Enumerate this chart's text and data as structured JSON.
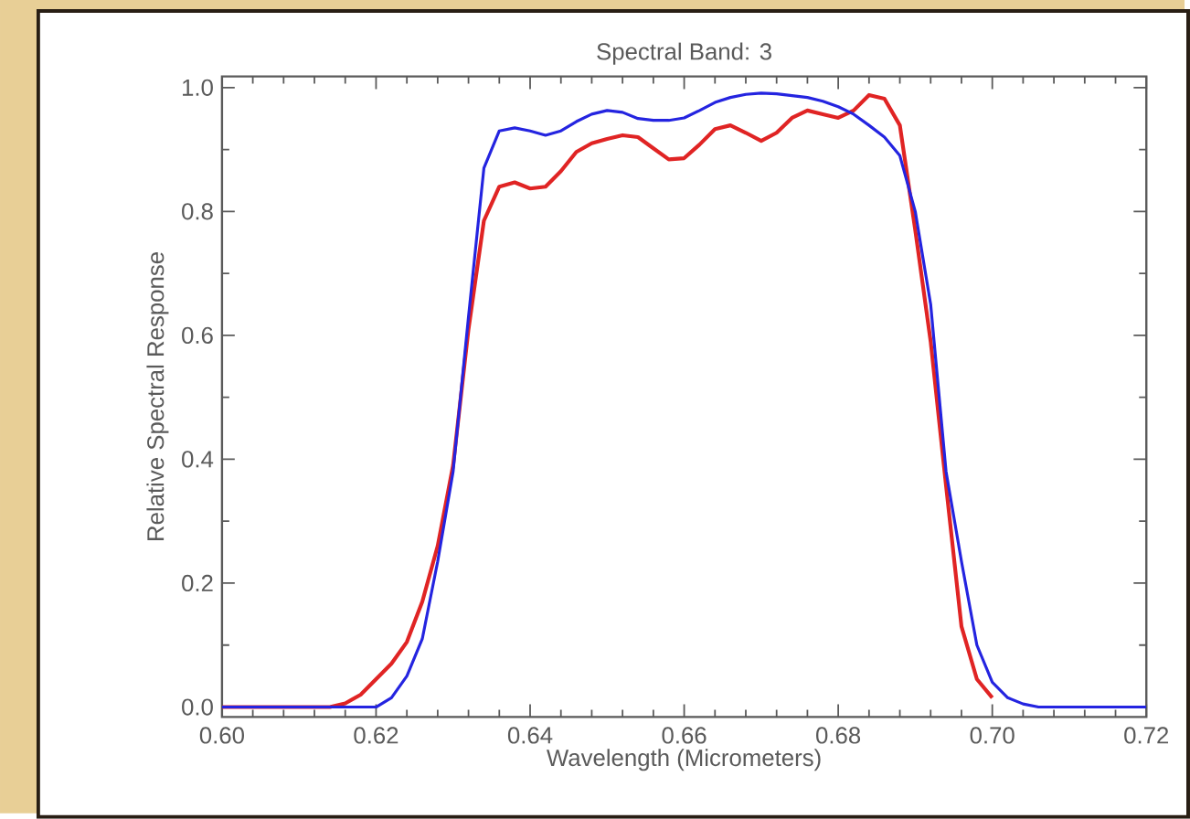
{
  "chart_data": {
    "type": "line",
    "title": "Spectral Band: 3",
    "xlabel": "Wavelength (Micrometers)",
    "ylabel": "Relative Spectral Response",
    "xlim": [
      0.6,
      0.72
    ],
    "ylim": [
      -0.016,
      1.018
    ],
    "xticks": [
      {
        "value": 0.6,
        "label": "0.60"
      },
      {
        "value": 0.62,
        "label": "0.62"
      },
      {
        "value": 0.64,
        "label": "0.64"
      },
      {
        "value": 0.66,
        "label": "0.66"
      },
      {
        "value": 0.68,
        "label": "0.68"
      },
      {
        "value": 0.7,
        "label": "0.70"
      },
      {
        "value": 0.72,
        "label": "0.72"
      }
    ],
    "yticks": [
      {
        "value": 0,
        "label": "0.0"
      },
      {
        "value": 0.2,
        "label": "0.2"
      },
      {
        "value": 0.4,
        "label": "0.4"
      },
      {
        "value": 0.6,
        "label": "0.6"
      },
      {
        "value": 0.8,
        "label": "0.8"
      },
      {
        "value": 1.0,
        "label": "1.0"
      }
    ],
    "series": [
      {
        "color": "#e02424",
        "x": [
          0.6,
          0.614,
          0.616,
          0.618,
          0.62,
          0.622,
          0.624,
          0.626,
          0.628,
          0.63,
          0.632,
          0.634,
          0.636,
          0.638,
          0.64,
          0.642,
          0.644,
          0.646,
          0.648,
          0.65,
          0.652,
          0.654,
          0.656,
          0.658,
          0.66,
          0.662,
          0.664,
          0.666,
          0.668,
          0.67,
          0.672,
          0.674,
          0.676,
          0.678,
          0.68,
          0.682,
          0.684,
          0.686,
          0.688,
          0.69,
          0.692,
          0.694,
          0.696,
          0.698,
          0.7
        ],
        "values": [
          0,
          0,
          0.006,
          0.02,
          0.045,
          0.07,
          0.105,
          0.17,
          0.26,
          0.39,
          0.61,
          0.785,
          0.84,
          0.847,
          0.837,
          0.84,
          0.865,
          0.896,
          0.91,
          0.917,
          0.923,
          0.92,
          0.902,
          0.884,
          0.886,
          0.908,
          0.933,
          0.939,
          0.927,
          0.914,
          0.927,
          0.951,
          0.963,
          0.957,
          0.951,
          0.963,
          0.988,
          0.982,
          0.939,
          0.77,
          0.59,
          0.357,
          0.13,
          0.045,
          0.015
        ]
      },
      {
        "color": "#2424e0",
        "x": [
          0.6,
          0.62,
          0.622,
          0.624,
          0.626,
          0.628,
          0.63,
          0.632,
          0.634,
          0.636,
          0.638,
          0.64,
          0.642,
          0.644,
          0.646,
          0.648,
          0.65,
          0.652,
          0.654,
          0.656,
          0.658,
          0.66,
          0.662,
          0.664,
          0.666,
          0.668,
          0.67,
          0.672,
          0.674,
          0.676,
          0.678,
          0.68,
          0.682,
          0.684,
          0.686,
          0.688,
          0.69,
          0.692,
          0.694,
          0.696,
          0.698,
          0.7,
          0.702,
          0.704,
          0.706,
          0.72
        ],
        "values": [
          0,
          0,
          0.015,
          0.05,
          0.11,
          0.235,
          0.38,
          0.63,
          0.87,
          0.93,
          0.935,
          0.93,
          0.923,
          0.93,
          0.945,
          0.957,
          0.963,
          0.96,
          0.95,
          0.947,
          0.947,
          0.951,
          0.963,
          0.976,
          0.984,
          0.989,
          0.991,
          0.99,
          0.987,
          0.984,
          0.978,
          0.969,
          0.957,
          0.939,
          0.92,
          0.89,
          0.8,
          0.65,
          0.38,
          0.235,
          0.1,
          0.04,
          0.015,
          0.005,
          0,
          0
        ]
      }
    ]
  }
}
